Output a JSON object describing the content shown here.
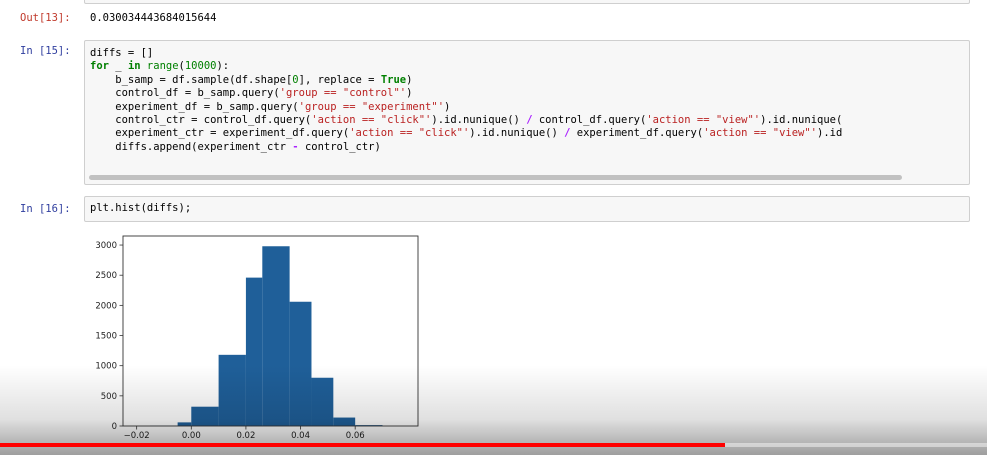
{
  "out13": {
    "prompt": "Out[13]:",
    "value": "0.030034443684015644"
  },
  "in15": {
    "prompt": "In [15]:",
    "lines": [
      [
        {
          "t": "diffs = []"
        }
      ],
      [
        {
          "t": "for",
          "c": "kw"
        },
        {
          "t": " _ "
        },
        {
          "t": "in",
          "c": "kw"
        },
        {
          "t": " "
        },
        {
          "t": "range",
          "c": "bi"
        },
        {
          "t": "("
        },
        {
          "t": "10000",
          "c": "num"
        },
        {
          "t": "):"
        }
      ],
      [
        {
          "t": "    b_samp = df.sample(df.shape["
        },
        {
          "t": "0",
          "c": "num"
        },
        {
          "t": "], replace = "
        },
        {
          "t": "True",
          "c": "kw"
        },
        {
          "t": ")"
        }
      ],
      [
        {
          "t": "    control_df = b_samp.query("
        },
        {
          "t": "'group == \"control\"'",
          "c": "str"
        },
        {
          "t": ")"
        }
      ],
      [
        {
          "t": "    experiment_df = b_samp.query("
        },
        {
          "t": "'group == \"experiment\"'",
          "c": "str"
        },
        {
          "t": ")"
        }
      ],
      [
        {
          "t": "    control_ctr = control_df.query("
        },
        {
          "t": "'action == \"click\"'",
          "c": "str"
        },
        {
          "t": ").id.nunique() "
        },
        {
          "t": "/",
          "c": "op"
        },
        {
          "t": " control_df.query("
        },
        {
          "t": "'action == \"view\"'",
          "c": "str"
        },
        {
          "t": ").id.nunique("
        }
      ],
      [
        {
          "t": "    experiment_ctr = experiment_df.query("
        },
        {
          "t": "'action == \"click\"'",
          "c": "str"
        },
        {
          "t": ").id.nunique() "
        },
        {
          "t": "/",
          "c": "op"
        },
        {
          "t": " experiment_df.query("
        },
        {
          "t": "'action == \"view\"'",
          "c": "str"
        },
        {
          "t": ").id"
        }
      ],
      [
        {
          "t": "    diffs.append(experiment_ctr "
        },
        {
          "t": "-",
          "c": "op"
        },
        {
          "t": " control_ctr)"
        }
      ]
    ]
  },
  "in16": {
    "prompt": "In [16]:",
    "code": "plt.hist(diffs);"
  },
  "chart_data": {
    "type": "bar",
    "title": "",
    "xlabel": "",
    "ylabel": "",
    "bin_edges": [
      -0.0151,
      -0.005,
      0.0,
      0.01,
      0.02,
      0.026,
      0.036,
      0.044,
      0.052,
      0.06,
      0.07
    ],
    "values": [
      5,
      60,
      320,
      1180,
      2460,
      2980,
      2060,
      800,
      140,
      15
    ],
    "xlim": [
      -0.025,
      0.083
    ],
    "ylim": [
      0,
      3150
    ],
    "xticks": [
      -0.02,
      0.0,
      0.02,
      0.04,
      0.06
    ],
    "xtick_labels": [
      "−0.02",
      "0.00",
      "0.02",
      "0.04",
      "0.06"
    ],
    "yticks": [
      0,
      500,
      1000,
      1500,
      2000,
      2500,
      3000
    ],
    "ytick_labels": [
      "0",
      "500",
      "1000",
      "1500",
      "2000",
      "2500",
      "3000"
    ],
    "color": "#1f5f99",
    "grid": false
  },
  "video": {
    "progress_fraction": 0.735,
    "progress_color": "#ff0000"
  }
}
